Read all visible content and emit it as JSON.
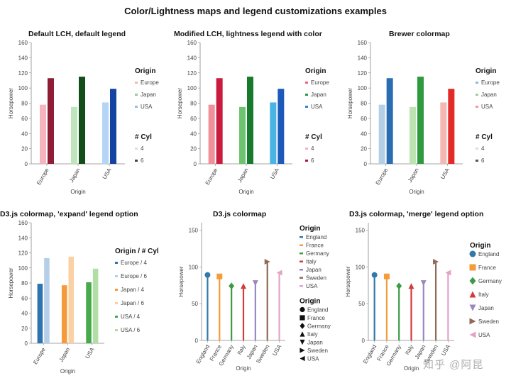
{
  "main_title": "Color/Lightness maps and legend customizations examples",
  "watermark": "知乎 @阿昆",
  "chart_data": [
    {
      "id": "p1",
      "type": "bar",
      "title": "Default LCH, default legend",
      "xlabel": "Origin",
      "ylabel": "Horsepower",
      "ylim": [
        0,
        160
      ],
      "yticks": [
        "0",
        "20",
        "40",
        "60",
        "80",
        "100",
        "120",
        "140",
        "160"
      ],
      "categories": [
        "Europe",
        "Japan",
        "USA"
      ],
      "series": [
        {
          "name": "4",
          "values": [
            78,
            75,
            81
          ]
        },
        {
          "name": "6",
          "values": [
            113,
            115,
            99
          ]
        }
      ],
      "colors": [
        [
          "#f6b4bc",
          "#8e1d35"
        ],
        [
          "#bfe5bc",
          "#134d1a"
        ],
        [
          "#b4d5f5",
          "#1543a3"
        ]
      ],
      "legend": [
        {
          "title": "Origin",
          "items": [
            {
              "label": "Europe",
              "color": "#f6b4bc"
            },
            {
              "label": "Japan",
              "color": "#9bc99a"
            },
            {
              "label": "USA",
              "color": "#9cbbe0"
            }
          ]
        },
        {
          "title": "# Cyl",
          "items": [
            {
              "label": "4",
              "color": "#dddddd"
            },
            {
              "label": "6",
              "color": "#444444"
            }
          ]
        }
      ]
    },
    {
      "id": "p2",
      "type": "bar",
      "title": "Modified LCH, lightness legend with color",
      "xlabel": "Origin",
      "ylabel": "Horsepower",
      "ylim": [
        0,
        160
      ],
      "yticks": [
        "0",
        "20",
        "40",
        "60",
        "80",
        "100",
        "120",
        "140",
        "160"
      ],
      "categories": [
        "Europe",
        "Japan",
        "USA"
      ],
      "series": [
        {
          "name": "4",
          "values": [
            78,
            75,
            81
          ]
        },
        {
          "name": "6",
          "values": [
            113,
            115,
            99
          ]
        }
      ],
      "colors": [
        [
          "#f0909a",
          "#c91c3e"
        ],
        [
          "#6dc470",
          "#177a2d"
        ],
        [
          "#49b3e3",
          "#1d59b8"
        ]
      ],
      "legend": [
        {
          "title": "Origin",
          "items": [
            {
              "label": "Europe",
              "color": "#e6687a"
            },
            {
              "label": "Japan",
              "color": "#2f9a47"
            },
            {
              "label": "USA",
              "color": "#2f86d4"
            }
          ]
        },
        {
          "title": "# Cyl",
          "items": [
            {
              "label": "4",
              "color": "#f2b3bb"
            },
            {
              "label": "6",
              "color": "#b21a3b"
            }
          ]
        }
      ]
    },
    {
      "id": "p3",
      "type": "bar",
      "title": "Brewer colormap",
      "xlabel": "Origin",
      "ylabel": "Horsepower",
      "ylim": [
        0,
        160
      ],
      "yticks": [
        "0",
        "20",
        "40",
        "60",
        "80",
        "100",
        "120",
        "140",
        "160"
      ],
      "categories": [
        "Europe",
        "Japan",
        "USA"
      ],
      "series": [
        {
          "name": "4",
          "values": [
            78,
            75,
            81
          ]
        },
        {
          "name": "6",
          "values": [
            113,
            115,
            99
          ]
        }
      ],
      "colors": [
        [
          "#b3d0e6",
          "#2a6db3"
        ],
        [
          "#bde3b2",
          "#2e9a3f"
        ],
        [
          "#f6b7b3",
          "#e22b29"
        ]
      ],
      "legend": [
        {
          "title": "Origin",
          "items": [
            {
              "label": "Europe",
              "color": "#8fb8db"
            },
            {
              "label": "Japan",
              "color": "#9dd38f"
            },
            {
              "label": "USA",
              "color": "#f09a97"
            }
          ]
        },
        {
          "title": "# Cyl",
          "items": [
            {
              "label": "4",
              "color": "#dddddd"
            },
            {
              "label": "6",
              "color": "#555555"
            }
          ]
        }
      ]
    },
    {
      "id": "p4",
      "type": "bar",
      "title": "D3.js colormap, 'expand' legend option",
      "xlabel": "Origin",
      "ylabel": "Horsepower",
      "ylim": [
        0,
        160
      ],
      "yticks": [
        "0",
        "20",
        "40",
        "60",
        "80",
        "100",
        "120",
        "140",
        "160"
      ],
      "categories": [
        "Europe",
        "Japan",
        "USA"
      ],
      "series": [
        {
          "name": "4",
          "values": [
            79,
            77,
            81
          ]
        },
        {
          "name": "6",
          "values": [
            113,
            115,
            99
          ]
        }
      ],
      "colors": [
        [
          "#2d74b0",
          "#b5cfe8"
        ],
        [
          "#f59a3a",
          "#fbd0a3"
        ],
        [
          "#46aa4a",
          "#b1dea6"
        ]
      ],
      "legend": [
        {
          "title": "Origin / # Cyl",
          "items": [
            {
              "label": "Europe / 4",
              "color": "#2d74b0"
            },
            {
              "label": "Europe / 6",
              "color": "#b5cfe8"
            },
            {
              "label": "Japan / 4",
              "color": "#f59a3a"
            },
            {
              "label": "Japan / 6",
              "color": "#fbd0a3"
            },
            {
              "label": "USA / 4",
              "color": "#46aa4a"
            },
            {
              "label": "USA / 6",
              "color": "#b1dea6"
            }
          ]
        }
      ]
    },
    {
      "id": "p5",
      "type": "lollipop",
      "title": "D3.js colormap",
      "xlabel": "Origin",
      "ylabel": "Horsepower",
      "ylim": [
        0,
        160
      ],
      "yticks": [
        "0",
        "50",
        "100",
        "150"
      ],
      "categories": [
        "England",
        "France",
        "Germany",
        "Italy",
        "Japan",
        "Sweden",
        "USA"
      ],
      "values": [
        89,
        87,
        74,
        74,
        78,
        107,
        92
      ],
      "colors": [
        "#2f7aaa",
        "#f49b3a",
        "#3d9a46",
        "#d33a3a",
        "#9a86c0",
        "#8f6a55",
        "#e3a3c6"
      ],
      "shapes": [
        "circle",
        "square",
        "diamond",
        "triangle-up",
        "triangle-down",
        "triangle-right",
        "triangle-left"
      ],
      "legend": [
        {
          "title": "Origin",
          "kind": "color",
          "items": [
            {
              "label": "England",
              "color": "#2f7aaa"
            },
            {
              "label": "France",
              "color": "#f49b3a"
            },
            {
              "label": "Germany",
              "color": "#3d9a46"
            },
            {
              "label": "Italy",
              "color": "#d33a3a"
            },
            {
              "label": "Japan",
              "color": "#9a86c0"
            },
            {
              "label": "Sweden",
              "color": "#8f6a55"
            },
            {
              "label": "USA",
              "color": "#e3a3c6"
            }
          ]
        },
        {
          "title": "Origin",
          "kind": "shape",
          "items": [
            {
              "label": "England",
              "shape": "circle"
            },
            {
              "label": "France",
              "shape": "square"
            },
            {
              "label": "Germany",
              "shape": "diamond"
            },
            {
              "label": "Italy",
              "shape": "triangle-up"
            },
            {
              "label": "Japan",
              "shape": "triangle-down"
            },
            {
              "label": "Sweden",
              "shape": "triangle-right"
            },
            {
              "label": "USA",
              "shape": "triangle-left"
            }
          ]
        }
      ]
    },
    {
      "id": "p6",
      "type": "lollipop",
      "title": "D3.js colormap, 'merge' legend option",
      "xlabel": "Origin",
      "ylabel": "Horsepower",
      "ylim": [
        0,
        160
      ],
      "yticks": [
        "0",
        "50",
        "100",
        "150"
      ],
      "categories": [
        "England",
        "France",
        "Germany",
        "Italy",
        "Japan",
        "Sweden",
        "USA"
      ],
      "values": [
        89,
        87,
        74,
        74,
        78,
        107,
        92
      ],
      "colors": [
        "#2f7aaa",
        "#f49b3a",
        "#3d9a46",
        "#d33a3a",
        "#9a86c0",
        "#8f6a55",
        "#e3a3c6"
      ],
      "shapes": [
        "circle",
        "square",
        "diamond",
        "triangle-up",
        "triangle-down",
        "triangle-right",
        "triangle-left"
      ],
      "legend": [
        {
          "title": "Origin",
          "kind": "merge",
          "items": [
            {
              "label": "England",
              "color": "#2f7aaa",
              "shape": "circle"
            },
            {
              "label": "France",
              "color": "#f49b3a",
              "shape": "square"
            },
            {
              "label": "Germany",
              "color": "#3d9a46",
              "shape": "diamond"
            },
            {
              "label": "Italy",
              "color": "#d33a3a",
              "shape": "triangle-up"
            },
            {
              "label": "Japan",
              "color": "#9a86c0",
              "shape": "triangle-down"
            },
            {
              "label": "Sweden",
              "color": "#8f6a55",
              "shape": "triangle-right"
            },
            {
              "label": "USA",
              "color": "#e3a3c6",
              "shape": "triangle-left"
            }
          ]
        }
      ]
    }
  ]
}
